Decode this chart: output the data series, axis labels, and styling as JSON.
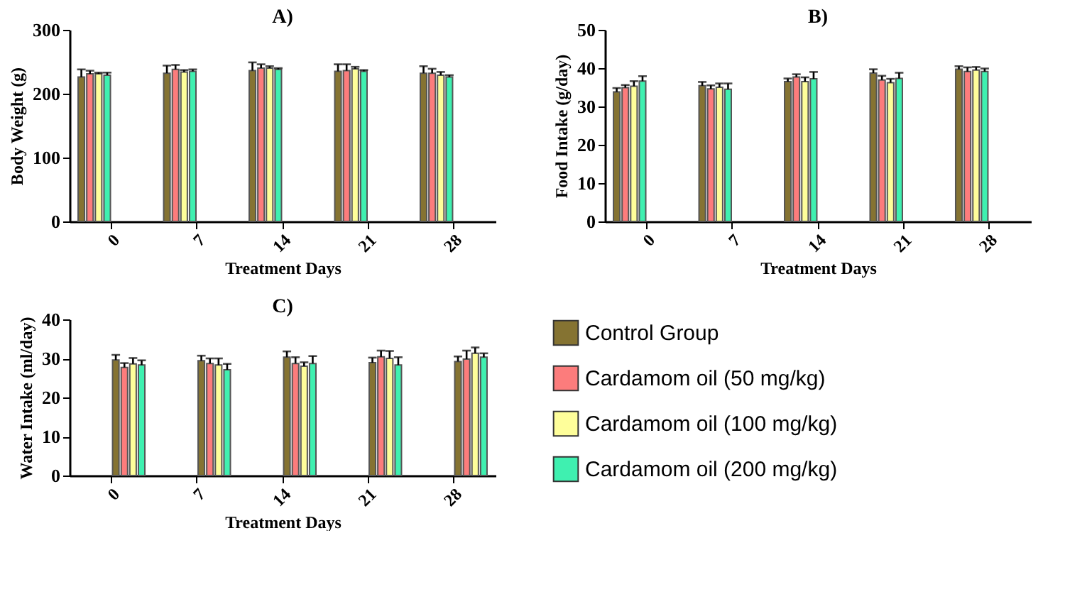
{
  "chart_data": [
    {
      "type": "bar",
      "title": "A)",
      "xlabel": "Treatment Days",
      "ylabel": "Body Weight (g)",
      "categories": [
        "0",
        "7",
        "14",
        "21",
        "28"
      ],
      "ylim": [
        0,
        300
      ],
      "yticks": [
        0,
        100,
        200,
        300
      ],
      "grid": false,
      "legend": false,
      "series": [
        {
          "color": "#857332",
          "values": [
            226,
            232,
            236,
            235,
            232
          ],
          "errors": [
            12,
            12,
            13,
            11,
            11
          ]
        },
        {
          "color": "#fc7c7c",
          "values": [
            231,
            238,
            240,
            236,
            232
          ],
          "errors": [
            5,
            7,
            6,
            10,
            7
          ]
        },
        {
          "color": "#fefe9a",
          "values": [
            231,
            234,
            240,
            239,
            229
          ],
          "errors": [
            2,
            3,
            3,
            3,
            5
          ]
        },
        {
          "color": "#3ff0b0",
          "values": [
            229,
            235,
            238,
            235,
            226
          ],
          "errors": [
            4,
            3,
            2,
            2,
            3
          ]
        }
      ]
    },
    {
      "type": "bar",
      "title": "B)",
      "xlabel": "Treatment Days",
      "ylabel": "Food Intake (g/day)",
      "categories": [
        "0",
        "7",
        "14",
        "21",
        "28"
      ],
      "ylim": [
        0,
        50
      ],
      "yticks": [
        0,
        10,
        20,
        30,
        40,
        50
      ],
      "grid": false,
      "legend": false,
      "series": [
        {
          "color": "#857332",
          "values": [
            33.8,
            35.4,
            36.5,
            38.7,
            39.7
          ],
          "errors": [
            1.0,
            1.0,
            0.8,
            1.0,
            0.8
          ]
        },
        {
          "color": "#fc7c7c",
          "values": [
            34.9,
            34.6,
            37.7,
            36.9,
            39.1
          ],
          "errors": [
            0.7,
            0.9,
            0.7,
            1.1,
            1.1
          ]
        },
        {
          "color": "#fefe9a",
          "values": [
            35.3,
            35.0,
            36.5,
            36.2,
            39.5
          ],
          "errors": [
            1.3,
            1.0,
            1.1,
            1.0,
            0.8
          ]
        },
        {
          "color": "#3ff0b0",
          "values": [
            36.6,
            34.5,
            37.2,
            37.3,
            39.1
          ],
          "errors": [
            1.3,
            1.5,
            1.8,
            1.5,
            0.8
          ]
        }
      ]
    },
    {
      "type": "bar",
      "title": "C)",
      "xlabel": "Treatment Days",
      "ylabel": "Water Intake (ml/day)",
      "categories": [
        "0",
        "7",
        "14",
        "21",
        "28"
      ],
      "ylim": [
        0,
        40
      ],
      "yticks": [
        0,
        10,
        20,
        30,
        40
      ],
      "grid": false,
      "legend": "right",
      "series": [
        {
          "name": "Control Group",
          "color": "#857332",
          "values": [
            29.6,
            29.4,
            30.3,
            28.9,
            29.2
          ],
          "errors": [
            1.3,
            1.3,
            1.5,
            1.3,
            1.3
          ]
        },
        {
          "name": "Cardamom oil (50 mg/kg)",
          "color": "#fc7c7c",
          "values": [
            27.7,
            28.7,
            28.7,
            30.4,
            29.8
          ],
          "errors": [
            1.1,
            1.3,
            1.6,
            1.6,
            2.2
          ]
        },
        {
          "name": "Cardamom oil (100 mg/kg)",
          "color": "#fefe9a",
          "values": [
            28.6,
            28.3,
            28.0,
            30.0,
            31.3
          ],
          "errors": [
            1.5,
            1.7,
            1.0,
            1.9,
            1.5
          ]
        },
        {
          "name": "Cardamom oil (200 mg/kg)",
          "color": "#3ff0b0",
          "values": [
            28.3,
            27.1,
            28.7,
            28.3,
            30.3
          ],
          "errors": [
            1.2,
            1.5,
            1.9,
            2.0,
            1.0
          ]
        }
      ]
    }
  ]
}
